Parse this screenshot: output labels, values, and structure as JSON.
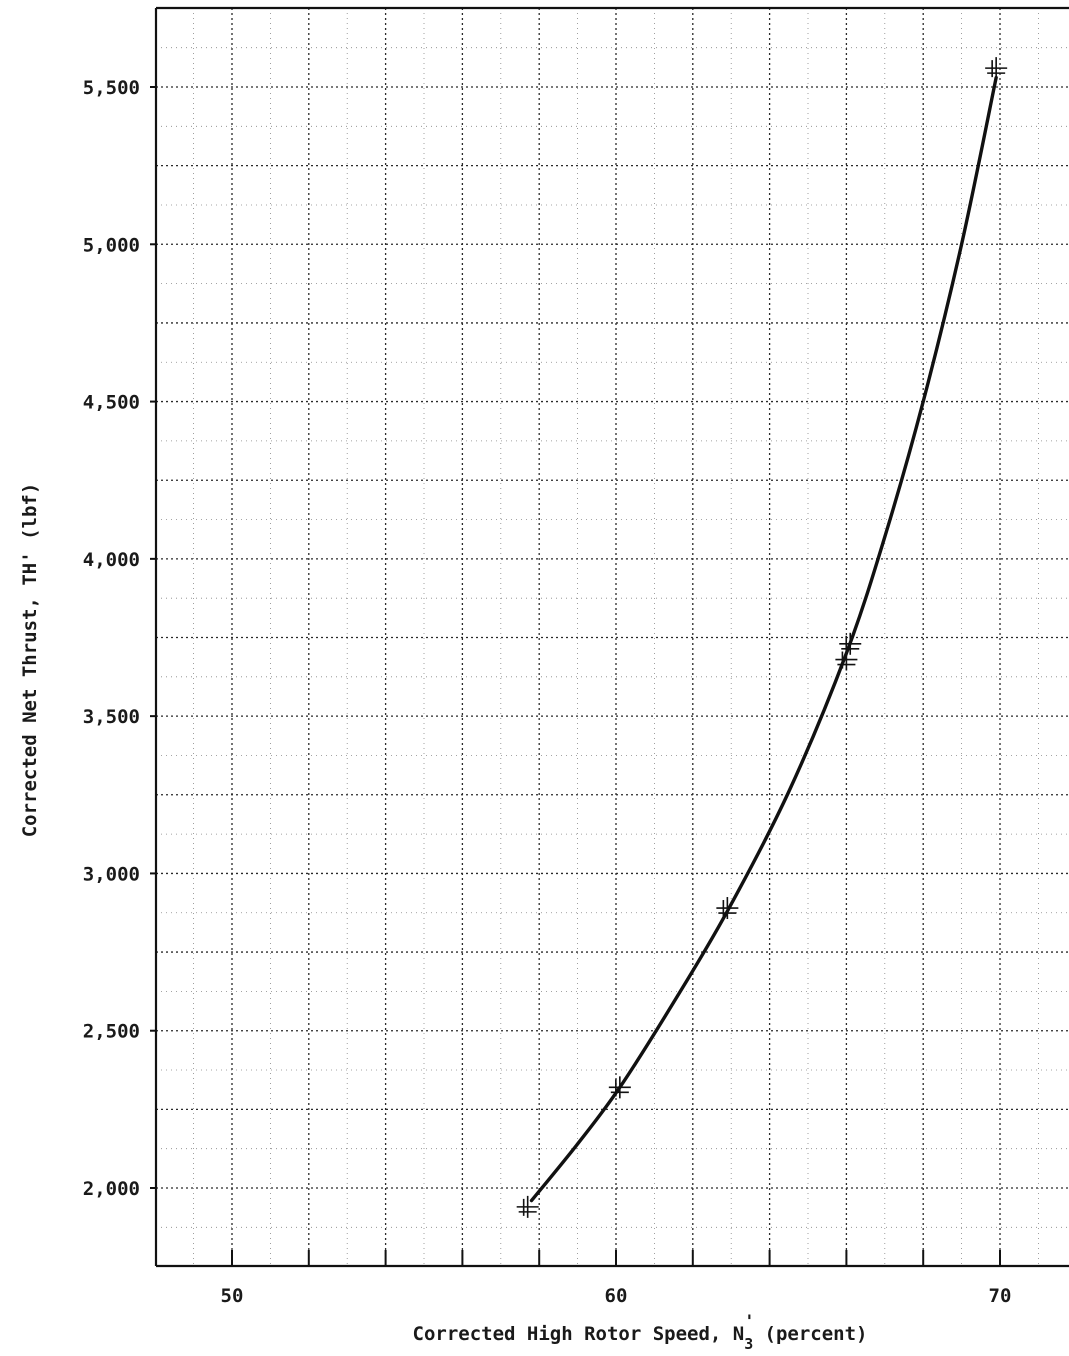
{
  "chart_data": {
    "type": "line",
    "title": "",
    "xlabel": "Corrected High Rotor Speed, N",
    "xlabel_sub": "3",
    "xlabel_prime": "'",
    "xlabel_unit": "(percent)",
    "ylabel": "Corrected Net Thrust, TH' (lbf)",
    "xlim": [
      48,
      72
    ],
    "ylim": [
      1750,
      5750
    ],
    "x_ticks": [
      50,
      60,
      70
    ],
    "x_tick_labels": [
      "50",
      "60",
      "70"
    ],
    "y_ticks": [
      2000,
      2500,
      3000,
      3500,
      4000,
      4500,
      5000,
      5500
    ],
    "y_tick_labels": [
      "2,000",
      "2,500",
      "3,000",
      "3,500",
      "4,000",
      "4,500",
      "5,000",
      "5,500"
    ],
    "grid": true,
    "points": [
      {
        "x": 57.7,
        "y": 1940
      },
      {
        "x": 60.1,
        "y": 2320
      },
      {
        "x": 62.9,
        "y": 2890
      },
      {
        "x": 66.0,
        "y": 3680
      },
      {
        "x": 66.1,
        "y": 3730
      },
      {
        "x": 69.9,
        "y": 5560
      }
    ],
    "curve": {
      "x": [
        57.8,
        59.0,
        60.1,
        61.5,
        62.9,
        64.5,
        66.0,
        67.0,
        68.0,
        69.0,
        69.9
      ],
      "y": [
        1960,
        2140,
        2320,
        2590,
        2880,
        3260,
        3700,
        4070,
        4500,
        5000,
        5530
      ]
    }
  }
}
